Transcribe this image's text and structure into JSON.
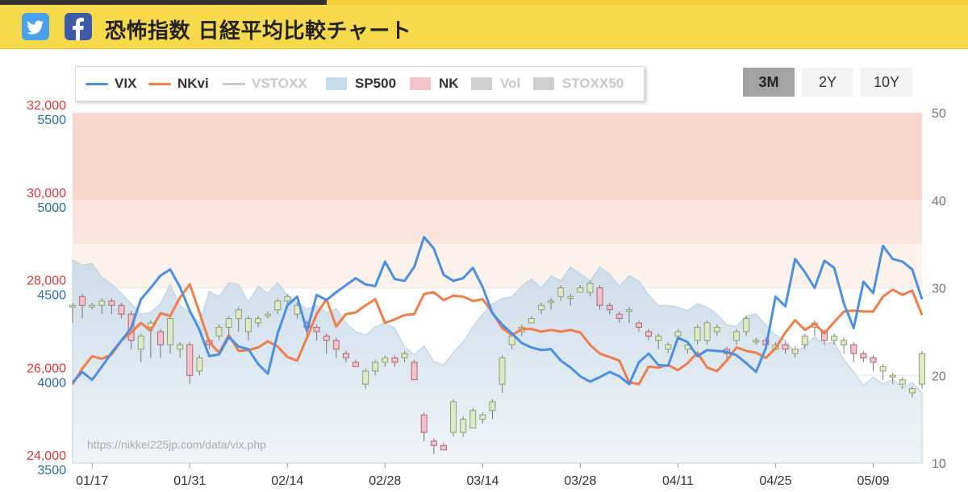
{
  "header": {
    "title": "恐怖指数 日経平均比較チャート",
    "social": [
      {
        "name": "twitter",
        "icon": "twitter-bird-icon",
        "color": "#4aa1eb"
      },
      {
        "name": "facebook",
        "icon": "facebook-f-icon",
        "color": "#3b5ba6"
      }
    ]
  },
  "legend": [
    {
      "label": "VIX",
      "kind": "line",
      "color": "#4a90e2",
      "active": true
    },
    {
      "label": "NKvi",
      "kind": "line",
      "color": "#f07d4a",
      "active": true
    },
    {
      "label": "VSTOXX",
      "kind": "line",
      "color": "#c8c8c8",
      "active": false
    },
    {
      "label": "SP500",
      "kind": "area",
      "color": "#c5dced",
      "active": true
    },
    {
      "label": "NK",
      "kind": "area",
      "color": "#f5c5cc",
      "active": true
    },
    {
      "label": "Vol",
      "kind": "area",
      "color": "#cfcfcf",
      "active": false
    },
    {
      "label": "STOXX50",
      "kind": "area",
      "color": "#cfcfcf",
      "active": false
    }
  ],
  "range_buttons": [
    {
      "label": "3M",
      "active": true
    },
    {
      "label": "2Y",
      "active": false
    },
    {
      "label": "10Y",
      "active": false
    }
  ],
  "watermark": "https://nikkei225jp.com/data/vix.php",
  "chart_data": {
    "type": "line",
    "x_ticks": [
      "01/17",
      "01/31",
      "02/14",
      "02/28",
      "03/14",
      "03/28",
      "04/11",
      "04/25",
      "05/09"
    ],
    "x_tick_index": [
      2,
      12,
      22,
      32,
      42,
      52,
      62,
      72,
      82
    ],
    "axes": {
      "nk_left": {
        "ticks": [
          "24,000",
          "26,000",
          "28,000",
          "30,000",
          "32,000"
        ],
        "values": [
          24000,
          26000,
          28000,
          30000,
          32000
        ],
        "color": "#d9383a",
        "range": [
          24000,
          32000
        ]
      },
      "sp500_left": {
        "ticks": [
          "3500",
          "4000",
          "4500",
          "5000",
          "5500"
        ],
        "values": [
          3500,
          4000,
          4500,
          5000,
          5500
        ],
        "color": "#2b6ca3",
        "range": [
          3500,
          5500
        ]
      },
      "vol_right": {
        "ticks": [
          "10",
          "20",
          "30",
          "40",
          "50"
        ],
        "values": [
          10,
          20,
          30,
          40,
          50
        ],
        "color": "#777777",
        "range": [
          10,
          50
        ]
      }
    },
    "volatility_bands": [
      {
        "from": 40,
        "to": 50,
        "color": "#f9d6cb"
      },
      {
        "from": 35,
        "to": 40,
        "color": "#fbe4dc"
      },
      {
        "from": 30,
        "to": 35,
        "color": "#fdf1ec"
      }
    ],
    "series": [
      {
        "name": "VIX",
        "color": "#4a90e2",
        "values": [
          19.2,
          20.4,
          19.5,
          21.0,
          22.6,
          24.0,
          25.4,
          28.7,
          30.0,
          31.4,
          32.1,
          30.1,
          27.4,
          25.2,
          22.2,
          22.4,
          24.4,
          23.3,
          23.0,
          21.3,
          20.2,
          24.8,
          28.0,
          29.0,
          25.1,
          29.2,
          28.6,
          29.5,
          30.3,
          31.1,
          30.4,
          30.2,
          33.0,
          31.0,
          30.8,
          32.4,
          35.8,
          34.5,
          31.5,
          30.8,
          31.1,
          32.3,
          30.1,
          27.1,
          25.8,
          24.8,
          23.7,
          23.2,
          22.9,
          23.0,
          21.7,
          20.9,
          19.9,
          19.3,
          19.8,
          20.4,
          19.9,
          19.0,
          21.5,
          22.5,
          21.2,
          21.1,
          24.3,
          23.8,
          22.2,
          22.9,
          22.8,
          22.7,
          22.3,
          21.4,
          20.4,
          23.1,
          29.0,
          27.9,
          33.3,
          31.8,
          30.0,
          33.1,
          32.3,
          28.2,
          25.4,
          30.7,
          29.4,
          34.8,
          33.3,
          33.0,
          32.1,
          28.7
        ]
      },
      {
        "name": "NKvi",
        "color": "#f07d4a",
        "values": [
          19.0,
          20.8,
          22.2,
          21.9,
          22.4,
          24.0,
          24.9,
          26.0,
          25.1,
          27.1,
          26.8,
          28.9,
          30.4,
          27.2,
          23.8,
          22.6,
          24.6,
          22.8,
          22.9,
          23.2,
          23.9,
          23.3,
          22.1,
          21.7,
          24.3,
          27.0,
          28.7,
          25.6,
          27.0,
          27.2,
          28.0,
          28.7,
          26.0,
          26.4,
          26.9,
          27.0,
          29.3,
          29.5,
          28.6,
          29.1,
          29.0,
          28.5,
          28.7,
          27.2,
          25.4,
          24.6,
          25.3,
          25.3,
          25.0,
          25.2,
          25.0,
          25.2,
          24.9,
          23.5,
          22.5,
          22.1,
          21.7,
          19.2,
          19.0,
          21.0,
          20.9,
          21.2,
          20.6,
          21.4,
          22.6,
          20.9,
          20.5,
          21.7,
          23.2,
          22.8,
          22.6,
          22.0,
          23.1,
          24.9,
          26.3,
          25.2,
          25.9,
          24.8,
          26.1,
          27.3,
          27.4,
          27.3,
          27.3,
          29.0,
          29.8,
          29.2,
          29.7,
          26.9
        ]
      },
      {
        "name": "SP500",
        "color": "#c5dced",
        "values": [
          4660,
          4630,
          4640,
          4560,
          4520,
          4470,
          4410,
          4350,
          4360,
          4410,
          4520,
          4400,
          4360,
          4300,
          4480,
          4450,
          4530,
          4520,
          4420,
          4510,
          4470,
          4530,
          4460,
          4420,
          4380,
          4400,
          4360,
          4380,
          4300,
          4250,
          4230,
          4280,
          4300,
          4270,
          4160,
          4120,
          4170,
          4080,
          4060,
          4130,
          4190,
          4280,
          4350,
          4410,
          4440,
          4450,
          4510,
          4550,
          4500,
          4570,
          4540,
          4620,
          4580,
          4540,
          4620,
          4580,
          4510,
          4570,
          4540,
          4460,
          4400,
          4400,
          4390,
          4370,
          4410,
          4390,
          4350,
          4290,
          4280,
          4340,
          4350,
          4290,
          4230,
          4200,
          4130,
          4170,
          4220,
          4180,
          4190,
          4090,
          4020,
          3940,
          3990,
          3950,
          3980,
          3930,
          3960,
          3900
        ]
      },
      {
        "name": "NK",
        "candles": [
          [
            27600,
            27600,
            27200
          ],
          [
            27800,
            27600,
            27300
          ],
          [
            27600,
            27600,
            27500
          ],
          [
            27600,
            27700,
            27400
          ],
          [
            27700,
            27600,
            27400
          ],
          [
            27600,
            27400,
            27300
          ],
          [
            27400,
            26800,
            26600
          ],
          [
            26600,
            26900,
            26300
          ],
          [
            27100,
            27200,
            26400
          ],
          [
            27000,
            26700,
            26400
          ],
          [
            26700,
            27300,
            26500
          ],
          [
            26600,
            26700,
            26400
          ],
          [
            26700,
            26000,
            25800
          ],
          [
            26100,
            26400,
            26000
          ],
          [
            26800,
            26700,
            26600
          ],
          [
            26900,
            27100,
            26800
          ],
          [
            27100,
            27300,
            26900
          ],
          [
            27300,
            27500,
            27000
          ],
          [
            27000,
            27300,
            26800
          ],
          [
            27200,
            27300,
            27100
          ],
          [
            27400,
            27400,
            27300
          ],
          [
            27500,
            27700,
            27400
          ],
          [
            27700,
            27800,
            27600
          ],
          [
            27400,
            27600,
            27300
          ],
          [
            27200,
            27100,
            26900
          ],
          [
            27100,
            27000,
            26800
          ],
          [
            26900,
            26800,
            26500
          ],
          [
            26800,
            26600,
            26400
          ],
          [
            26500,
            26400,
            26300
          ],
          [
            26300,
            26200,
            26200
          ],
          [
            25800,
            26100,
            25700
          ],
          [
            26100,
            26300,
            26000
          ],
          [
            26300,
            26400,
            26200
          ],
          [
            26400,
            26300,
            26200
          ],
          [
            26400,
            26500,
            26300
          ],
          [
            26300,
            25900,
            25900
          ],
          [
            25100,
            24700,
            24500
          ],
          [
            24500,
            24400,
            24200
          ],
          [
            24400,
            24300,
            24300
          ],
          [
            24700,
            25400,
            24600
          ],
          [
            24700,
            25000,
            24600
          ],
          [
            24800,
            25200,
            25000
          ],
          [
            25000,
            25100,
            24900
          ],
          [
            25200,
            25400,
            25000
          ],
          [
            25800,
            26400,
            25600
          ],
          [
            26700,
            26900,
            26600
          ],
          [
            27000,
            27100,
            26900
          ],
          [
            27200,
            27300,
            27200
          ],
          [
            27500,
            27600,
            27400
          ],
          [
            27700,
            27700,
            27500
          ],
          [
            27800,
            28000,
            27700
          ],
          [
            27800,
            27800,
            27600
          ],
          [
            27900,
            28000,
            27900
          ],
          [
            27900,
            28100,
            27800
          ],
          [
            28000,
            27600,
            27500
          ],
          [
            27600,
            27500,
            27400
          ],
          [
            27400,
            27300,
            27200
          ],
          [
            27500,
            27500,
            27200
          ],
          [
            27200,
            27100,
            27000
          ],
          [
            27000,
            26900,
            26800
          ],
          [
            26800,
            26900,
            26600
          ],
          [
            26600,
            26700,
            26500
          ],
          [
            26900,
            27000,
            26800
          ],
          [
            26600,
            26700,
            26500
          ],
          [
            26800,
            27100,
            26700
          ],
          [
            26800,
            27200,
            26700
          ],
          [
            27000,
            27100,
            26900
          ],
          [
            26600,
            26500,
            26400
          ],
          [
            26800,
            27000,
            26700
          ],
          [
            27000,
            27300,
            26900
          ],
          [
            26800,
            26800,
            26700
          ],
          [
            26800,
            26700,
            26600
          ],
          [
            26600,
            26700,
            26600
          ],
          [
            26700,
            26600,
            26500
          ],
          [
            26500,
            26600,
            26400
          ],
          [
            26700,
            26900,
            26600
          ],
          [
            27100,
            27200,
            26900
          ],
          [
            27000,
            26800,
            26700
          ],
          [
            26800,
            26900,
            26700
          ],
          [
            26700,
            26800,
            26500
          ],
          [
            26700,
            26500,
            26300
          ],
          [
            26500,
            26400,
            26300
          ],
          [
            26400,
            26300,
            26100
          ],
          [
            26100,
            26200,
            25900
          ],
          [
            26000,
            26000,
            25800
          ],
          [
            25800,
            25900,
            25700
          ],
          [
            25600,
            25700,
            25500
          ],
          [
            25800,
            26500,
            25700
          ]
        ]
      }
    ]
  }
}
